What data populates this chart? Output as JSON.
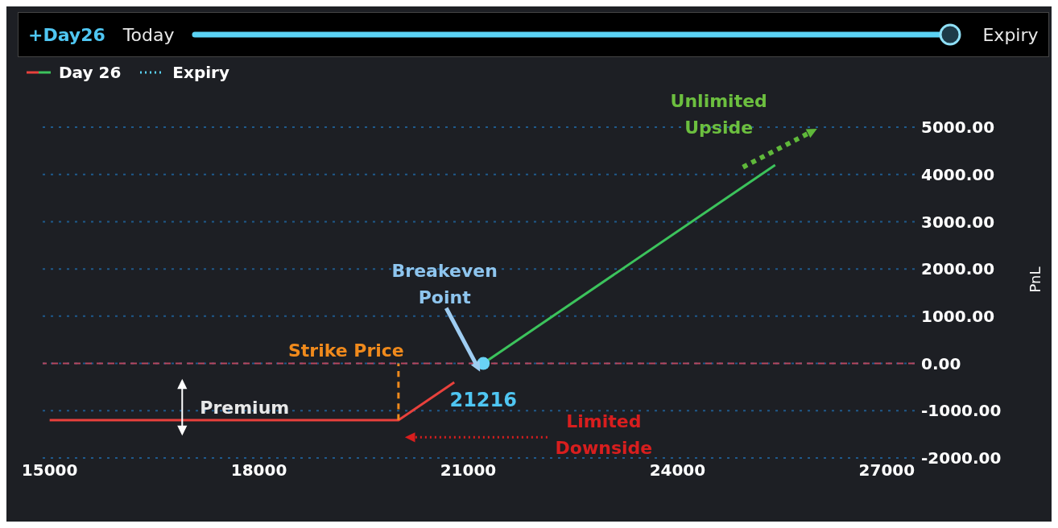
{
  "chart_data": {
    "type": "line",
    "annotations": [
      "+Day26",
      "Today",
      "Expiry",
      {
        "text": "Unlimited Upside",
        "x": 25400,
        "y": 4200
      },
      {
        "text": "Breakeven Point",
        "x": 21216,
        "y": 0
      },
      {
        "text": "21216",
        "x": 21216,
        "y": 0
      },
      {
        "text": "Strike Price",
        "x": 20000,
        "y": 0
      },
      "Premium",
      "Limited Downside"
    ],
    "ylabel": "PnL",
    "series": [
      {
        "name": "Day 26",
        "color": "#e8413c",
        "x": [
          15000,
          20000,
          20800
        ],
        "values": [
          -1200,
          -1200,
          -400
        ]
      },
      {
        "color": "#3cc35c",
        "x": [
          21216,
          25400
        ],
        "values": [
          0,
          4200
        ]
      },
      {
        "color": "#f08a1c",
        "line_style": "dashed",
        "x": [
          20000,
          20000
        ],
        "values": [
          -1200,
          0
        ]
      },
      {
        "type": "scatter",
        "color": "#69d2f5",
        "x": [
          21216
        ],
        "values": [
          0
        ]
      },
      {
        "name": "Expiry",
        "color": "#5bd3f5",
        "line_style": "dotted"
      }
    ],
    "xlim": [
      14900,
      27400
    ],
    "xticks": [
      15000,
      18000,
      21000,
      24000,
      27000
    ],
    "ylim": [
      -2000,
      5000
    ],
    "yticks": [
      {
        "value": -2000,
        "label": "-2000.00"
      },
      {
        "value": -1000,
        "label": "-1000.00"
      },
      {
        "value": 0,
        "label": "0.00"
      },
      {
        "value": 1000,
        "label": "1000.00"
      },
      {
        "value": 2000,
        "label": "2000.00"
      },
      {
        "value": 3000,
        "label": "3000.00"
      },
      {
        "value": 4000,
        "label": "4000.00"
      },
      {
        "value": 5000,
        "label": "5000.00"
      }
    ],
    "ref_lines": [
      {
        "axis": "y",
        "value": 0,
        "color": "#b5475f",
        "line_style": "dashed"
      }
    ],
    "grid": "y",
    "legend": "top left"
  }
}
